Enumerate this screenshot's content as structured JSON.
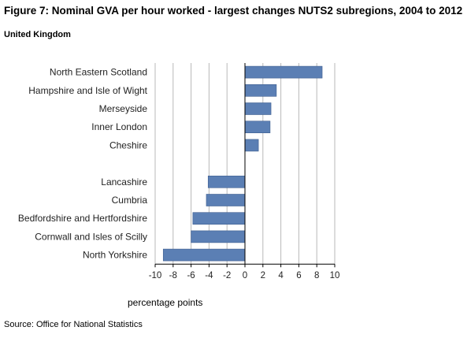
{
  "header": {
    "title": "Figure 7: Nominal GVA per hour worked - largest changes NUTS2 subregions, 2004 to 2012",
    "subtitle": "United Kingdom"
  },
  "footer": {
    "source": "Source: Office for National Statistics"
  },
  "chart_data": {
    "type": "bar",
    "orientation": "horizontal",
    "title": "Figure 7: Nominal GVA per hour worked - largest changes NUTS2 subregions, 2004 to 2012",
    "subtitle": "United Kingdom",
    "xlabel": "percentage points",
    "ylabel": "",
    "xlim": [
      -10,
      10
    ],
    "x_ticks": [
      -10,
      -8,
      -6,
      -4,
      -2,
      0,
      2,
      4,
      6,
      8,
      10
    ],
    "grid": true,
    "bar_color": "#5b7fb4",
    "categories": [
      "North Eastern Scotland",
      "Hampshire and Isle of Wight",
      "Merseyside",
      "Inner London",
      "Cheshire",
      "",
      "Lancashire",
      "Cumbria",
      "Bedfordshire and Hertfordshire",
      "Cornwall and Isles of Scilly",
      "North Yorkshire"
    ],
    "values": [
      8.6,
      3.5,
      2.9,
      2.8,
      1.5,
      null,
      -4.1,
      -4.3,
      -5.8,
      -6.0,
      -9.1
    ]
  }
}
